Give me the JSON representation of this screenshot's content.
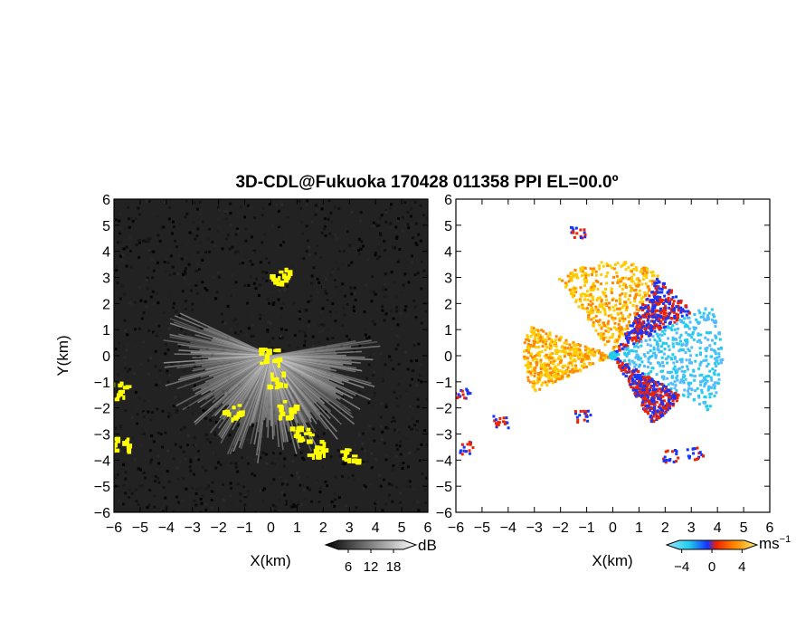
{
  "chart_data": [
    {
      "type": "heatmap",
      "title": "3D-CDL@Fukuoka 170428 011358 PPI EL=00.0º",
      "xlabel": "X(km)",
      "ylabel": "Y(km)",
      "xlim": [
        -6,
        6
      ],
      "ylim": [
        -6,
        6
      ],
      "x_ticks": [
        "-6",
        "-5",
        "-4",
        "-3",
        "-2",
        "-1",
        "0",
        "1",
        "2",
        "3",
        "4",
        "5",
        "6"
      ],
      "y_ticks": [
        "6",
        "5",
        "4",
        "3",
        "2",
        "1",
        "0",
        "-1",
        "-2",
        "-3",
        "-4",
        "-5",
        "-6"
      ],
      "variable": "echo intensity (grayscale, yellow = strong return)",
      "colorbar": {
        "unit": "dB",
        "ticks": [
          "6",
          "12",
          "18"
        ],
        "range": [
          0,
          24
        ]
      },
      "background_color": "#222222",
      "highlight_color": "#ffff00",
      "features": {
        "ray_fan_center": [
          0,
          0
        ],
        "ray_fan_sector_deg": [
          155,
          370
        ],
        "ray_fan_max_range_km": 4.2,
        "yellow_regions_km": [
          {
            "x": 0.3,
            "y": 3.1
          },
          {
            "x": -0.1,
            "y": 0.0
          },
          {
            "x": 0.2,
            "y": -0.9
          },
          {
            "x": 0.6,
            "y": -2.0
          },
          {
            "x": 1.1,
            "y": -3.0
          },
          {
            "x": 1.7,
            "y": -3.5
          },
          {
            "x": 2.9,
            "y": -3.8
          },
          {
            "x": -5.9,
            "y": -1.3
          },
          {
            "x": -5.8,
            "y": -3.4
          },
          {
            "x": -1.5,
            "y": -2.1
          }
        ]
      }
    },
    {
      "type": "heatmap",
      "xlabel": "X(km)",
      "xlim": [
        -6,
        6
      ],
      "ylim": [
        -6,
        6
      ],
      "x_ticks": [
        "-6",
        "-5",
        "-4",
        "-3",
        "-2",
        "-1",
        "0",
        "1",
        "2",
        "3",
        "4",
        "5",
        "6"
      ],
      "y_ticks": [
        "6",
        "5",
        "4",
        "3",
        "2",
        "1",
        "0",
        "-1",
        "-2",
        "-3",
        "-4",
        "-5",
        "-6"
      ],
      "variable": "radial velocity",
      "colorbar": {
        "unit": "ms-1",
        "ticks": [
          "-4",
          "0",
          "4"
        ],
        "range": [
          -6,
          6
        ]
      },
      "colors": {
        "blue": "#1434ff",
        "cyan": "#22ccee",
        "light_blue": "#55bbff",
        "orange": "#ff8800",
        "yellow": "#ffcc00",
        "red": "#ee2200"
      },
      "features": {
        "center_marker": [
          0,
          0
        ],
        "sectors": [
          {
            "velocity": 4,
            "angle_deg": [
              60,
              125
            ],
            "range_km": 3.6
          },
          {
            "velocity": 5,
            "angle_deg": [
              28,
              60
            ],
            "range_km": 3.4
          },
          {
            "velocity": -4,
            "angle_deg": [
              -30,
              28
            ],
            "range_km": 4.2
          },
          {
            "velocity": 4,
            "angle_deg": [
              160,
              205
            ],
            "range_km": 3.4
          },
          {
            "velocity": -5,
            "angle_deg": [
              -60,
              -30
            ],
            "range_km": 3.0
          }
        ],
        "edge_clusters_km": [
          {
            "x": -5.8,
            "y": -1.4,
            "velocity": 5
          },
          {
            "x": -5.6,
            "y": -3.5,
            "velocity": 5
          },
          {
            "x": 2.2,
            "y": -3.8,
            "velocity": 5
          },
          {
            "x": 3.1,
            "y": -3.7,
            "velocity": 5
          },
          {
            "x": -1.2,
            "y": -2.3,
            "velocity": -5
          },
          {
            "x": -4.3,
            "y": -2.5,
            "velocity": -5
          },
          {
            "x": -1.4,
            "y": 4.8,
            "velocity": 5
          }
        ]
      }
    }
  ]
}
